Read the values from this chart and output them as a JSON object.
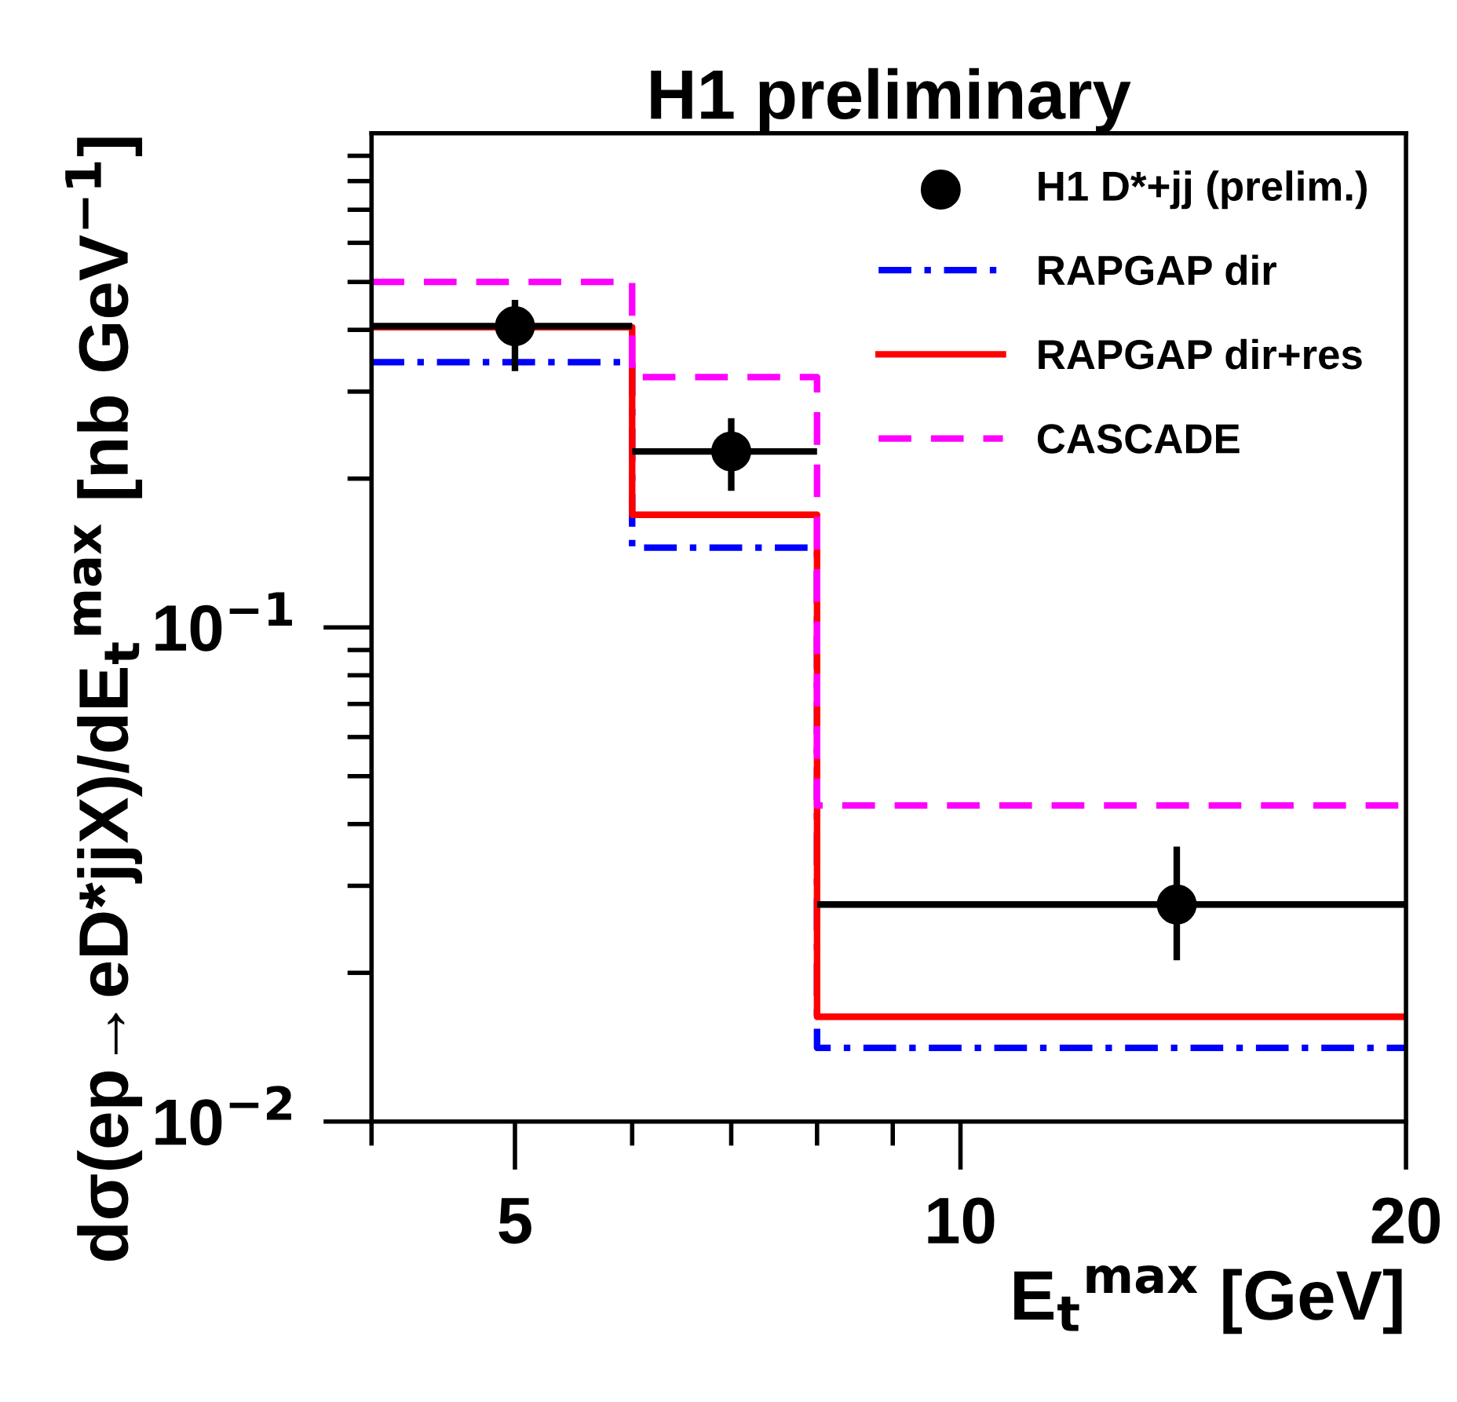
{
  "chart_data": {
    "type": "step",
    "title": "H1 preliminary",
    "xlabel": "E$_{t}$$^{max}$ [GeV]",
    "ylabel": "dσ(ep→eD*jjX)/dE$_{t}$$^{max}$ [nb GeV$^{−1}$]",
    "log": "xy",
    "xlim": [
      4,
      20
    ],
    "ylim": [
      0.01,
      1
    ],
    "xticks": [
      5,
      10,
      20
    ],
    "yticks": [
      {
        "value": 0.01,
        "label": "10$^{−2}$"
      },
      {
        "value": 0.1,
        "label": "10$^{−1}$"
      }
    ],
    "legend": "top right",
    "grid": false,
    "series": [
      {
        "name": "H1 D*+jj (prelim.)",
        "type": "scatter",
        "marker": "circle",
        "color": "#000000",
        "x": [
          5,
          7,
          14
        ],
        "values": [
          0.407,
          0.227,
          0.0275
        ],
        "errors": [
          [
            0.33,
            0.46
          ],
          [
            0.189,
            0.265
          ],
          [
            0.0212,
            0.036
          ]
        ],
        "xerrors": [
          [
            4,
            6
          ],
          [
            6,
            8
          ],
          [
            8,
            20
          ]
        ]
      },
      {
        "name": "RAPGAP dir",
        "line_style": "dashdot",
        "color": "#0000ff",
        "x": [
          4,
          6,
          8,
          20
        ],
        "values": [
          0.344,
          0.145,
          0.0141,
          0.0141
        ]
      },
      {
        "name": "RAPGAP dir+res",
        "line_style": "solid",
        "color": "#ff0000",
        "x": [
          4,
          6,
          8,
          20
        ],
        "values": [
          0.405,
          0.169,
          0.0163,
          0.0163
        ]
      },
      {
        "name": "CASCADE",
        "line_style": "dashed",
        "color": "#ff00ff",
        "x": [
          4,
          6,
          8,
          20
        ],
        "values": [
          0.5,
          0.321,
          0.0436,
          0.0436
        ]
      }
    ]
  }
}
